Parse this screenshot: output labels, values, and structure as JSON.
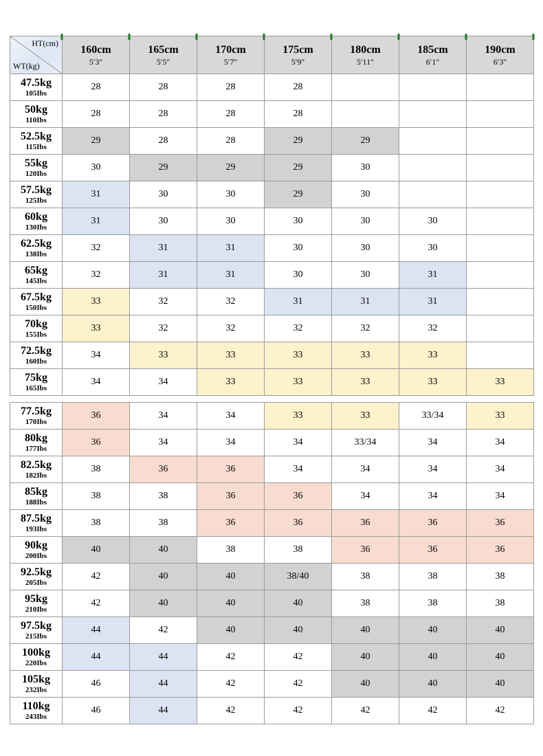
{
  "chart_data": {
    "type": "table",
    "title": "",
    "corner": {
      "top_right": "HT(cm)",
      "bottom_left": "WT(kg)"
    },
    "columns": [
      {
        "cm": "160cm",
        "ft": "5′3″"
      },
      {
        "cm": "165cm",
        "ft": "5′5″"
      },
      {
        "cm": "170cm",
        "ft": "5′7″"
      },
      {
        "cm": "175cm",
        "ft": "5′9″"
      },
      {
        "cm": "180cm",
        "ft": "5′11″"
      },
      {
        "cm": "185cm",
        "ft": "6′1″"
      },
      {
        "cm": "190cm",
        "ft": "6′3″"
      }
    ],
    "rows": [
      {
        "kg": "47.5kg",
        "lbs": "105Ibs",
        "cells": [
          {
            "v": "28",
            "c": "w"
          },
          {
            "v": "28",
            "c": "w"
          },
          {
            "v": "28",
            "c": "w"
          },
          {
            "v": "28",
            "c": "w"
          },
          {
            "v": "",
            "c": "w"
          },
          {
            "v": "",
            "c": "w"
          },
          {
            "v": "",
            "c": "w"
          }
        ]
      },
      {
        "kg": "50kg",
        "lbs": "110Ibs",
        "cells": [
          {
            "v": "28",
            "c": "w"
          },
          {
            "v": "28",
            "c": "w"
          },
          {
            "v": "28",
            "c": "w"
          },
          {
            "v": "28",
            "c": "w"
          },
          {
            "v": "",
            "c": "w"
          },
          {
            "v": "",
            "c": "w"
          },
          {
            "v": "",
            "c": "w"
          }
        ]
      },
      {
        "kg": "52.5kg",
        "lbs": "115Ibs",
        "cells": [
          {
            "v": "29",
            "c": "g"
          },
          {
            "v": "28",
            "c": "w"
          },
          {
            "v": "28",
            "c": "w"
          },
          {
            "v": "29",
            "c": "g"
          },
          {
            "v": "29",
            "c": "g"
          },
          {
            "v": "",
            "c": "w"
          },
          {
            "v": "",
            "c": "w"
          }
        ]
      },
      {
        "kg": "55kg",
        "lbs": "120Ibs",
        "cells": [
          {
            "v": "30",
            "c": "w"
          },
          {
            "v": "29",
            "c": "g"
          },
          {
            "v": "29",
            "c": "g"
          },
          {
            "v": "29",
            "c": "g"
          },
          {
            "v": "30",
            "c": "w"
          },
          {
            "v": "",
            "c": "w"
          },
          {
            "v": "",
            "c": "w"
          }
        ]
      },
      {
        "kg": "57.5kg",
        "lbs": "125Ibs",
        "cells": [
          {
            "v": "31",
            "c": "b"
          },
          {
            "v": "30",
            "c": "w"
          },
          {
            "v": "30",
            "c": "w"
          },
          {
            "v": "29",
            "c": "g"
          },
          {
            "v": "30",
            "c": "w"
          },
          {
            "v": "",
            "c": "w"
          },
          {
            "v": "",
            "c": "w"
          }
        ]
      },
      {
        "kg": "60kg",
        "lbs": "130Ibs",
        "cells": [
          {
            "v": "31",
            "c": "b"
          },
          {
            "v": "30",
            "c": "w"
          },
          {
            "v": "30",
            "c": "w"
          },
          {
            "v": "30",
            "c": "w"
          },
          {
            "v": "30",
            "c": "w"
          },
          {
            "v": "30",
            "c": "w"
          },
          {
            "v": "",
            "c": "w"
          }
        ]
      },
      {
        "kg": "62.5kg",
        "lbs": "138Ibs",
        "cells": [
          {
            "v": "32",
            "c": "w"
          },
          {
            "v": "31",
            "c": "b"
          },
          {
            "v": "31",
            "c": "b"
          },
          {
            "v": "30",
            "c": "w"
          },
          {
            "v": "30",
            "c": "w"
          },
          {
            "v": "30",
            "c": "w"
          },
          {
            "v": "",
            "c": "w"
          }
        ]
      },
      {
        "kg": "65kg",
        "lbs": "145Ibs",
        "cells": [
          {
            "v": "32",
            "c": "w"
          },
          {
            "v": "31",
            "c": "b"
          },
          {
            "v": "31",
            "c": "b"
          },
          {
            "v": "30",
            "c": "w"
          },
          {
            "v": "30",
            "c": "w"
          },
          {
            "v": "31",
            "c": "b"
          },
          {
            "v": "",
            "c": "w"
          }
        ]
      },
      {
        "kg": "67.5kg",
        "lbs": "150Ibs",
        "cells": [
          {
            "v": "33",
            "c": "y"
          },
          {
            "v": "32",
            "c": "w"
          },
          {
            "v": "32",
            "c": "w"
          },
          {
            "v": "31",
            "c": "b"
          },
          {
            "v": "31",
            "c": "b"
          },
          {
            "v": "31",
            "c": "b"
          },
          {
            "v": "",
            "c": "w"
          }
        ]
      },
      {
        "kg": "70kg",
        "lbs": "155Ibs",
        "cells": [
          {
            "v": "33",
            "c": "y"
          },
          {
            "v": "32",
            "c": "w"
          },
          {
            "v": "32",
            "c": "w"
          },
          {
            "v": "32",
            "c": "w"
          },
          {
            "v": "32",
            "c": "w"
          },
          {
            "v": "32",
            "c": "w"
          },
          {
            "v": "",
            "c": "w"
          }
        ]
      },
      {
        "kg": "72.5kg",
        "lbs": "160Ibs",
        "cells": [
          {
            "v": "34",
            "c": "w"
          },
          {
            "v": "33",
            "c": "y"
          },
          {
            "v": "33",
            "c": "y"
          },
          {
            "v": "33",
            "c": "y"
          },
          {
            "v": "33",
            "c": "y"
          },
          {
            "v": "33",
            "c": "y"
          },
          {
            "v": "",
            "c": "w"
          }
        ]
      },
      {
        "kg": "75kg",
        "lbs": "165Ibs",
        "cells": [
          {
            "v": "34",
            "c": "w"
          },
          {
            "v": "34",
            "c": "w"
          },
          {
            "v": "33",
            "c": "y"
          },
          {
            "v": "33",
            "c": "y"
          },
          {
            "v": "33",
            "c": "y"
          },
          {
            "v": "33",
            "c": "y"
          },
          {
            "v": "33",
            "c": "y"
          }
        ]
      },
      {
        "kg": "77.5kg",
        "lbs": "170Ibs",
        "cells": [
          {
            "v": "36",
            "c": "p"
          },
          {
            "v": "34",
            "c": "w"
          },
          {
            "v": "34",
            "c": "w"
          },
          {
            "v": "33",
            "c": "y"
          },
          {
            "v": "33",
            "c": "y"
          },
          {
            "v": "33/34",
            "c": "w"
          },
          {
            "v": "33",
            "c": "y"
          }
        ]
      },
      {
        "kg": "80kg",
        "lbs": "177Ibs",
        "cells": [
          {
            "v": "36",
            "c": "p"
          },
          {
            "v": "34",
            "c": "w"
          },
          {
            "v": "34",
            "c": "w"
          },
          {
            "v": "34",
            "c": "w"
          },
          {
            "v": "33/34",
            "c": "w"
          },
          {
            "v": "34",
            "c": "w"
          },
          {
            "v": "34",
            "c": "w"
          }
        ]
      },
      {
        "kg": "82.5kg",
        "lbs": "182Ibs",
        "cells": [
          {
            "v": "38",
            "c": "w"
          },
          {
            "v": "36",
            "c": "p"
          },
          {
            "v": "36",
            "c": "p"
          },
          {
            "v": "34",
            "c": "w"
          },
          {
            "v": "34",
            "c": "w"
          },
          {
            "v": "34",
            "c": "w"
          },
          {
            "v": "34",
            "c": "w"
          }
        ]
      },
      {
        "kg": "85kg",
        "lbs": "188Ibs",
        "cells": [
          {
            "v": "38",
            "c": "w"
          },
          {
            "v": "38",
            "c": "w"
          },
          {
            "v": "36",
            "c": "p"
          },
          {
            "v": "36",
            "c": "p"
          },
          {
            "v": "34",
            "c": "w"
          },
          {
            "v": "34",
            "c": "w"
          },
          {
            "v": "34",
            "c": "w"
          }
        ]
      },
      {
        "kg": "87.5kg",
        "lbs": "193Ibs",
        "cells": [
          {
            "v": "38",
            "c": "w"
          },
          {
            "v": "38",
            "c": "w"
          },
          {
            "v": "36",
            "c": "p"
          },
          {
            "v": "36",
            "c": "p"
          },
          {
            "v": "36",
            "c": "p"
          },
          {
            "v": "36",
            "c": "p"
          },
          {
            "v": "36",
            "c": "p"
          }
        ]
      },
      {
        "kg": "90kg",
        "lbs": "200Ibs",
        "cells": [
          {
            "v": "40",
            "c": "g"
          },
          {
            "v": "40",
            "c": "g"
          },
          {
            "v": "38",
            "c": "w"
          },
          {
            "v": "38",
            "c": "w"
          },
          {
            "v": "36",
            "c": "p"
          },
          {
            "v": "36",
            "c": "p"
          },
          {
            "v": "36",
            "c": "p"
          }
        ]
      },
      {
        "kg": "92.5kg",
        "lbs": "205Ibs",
        "cells": [
          {
            "v": "42",
            "c": "w"
          },
          {
            "v": "40",
            "c": "g"
          },
          {
            "v": "40",
            "c": "g"
          },
          {
            "v": "38/40",
            "c": "g"
          },
          {
            "v": "38",
            "c": "w"
          },
          {
            "v": "38",
            "c": "w"
          },
          {
            "v": "38",
            "c": "w"
          }
        ]
      },
      {
        "kg": "95kg",
        "lbs": "210Ibs",
        "cells": [
          {
            "v": "42",
            "c": "w"
          },
          {
            "v": "40",
            "c": "g"
          },
          {
            "v": "40",
            "c": "g"
          },
          {
            "v": "40",
            "c": "g"
          },
          {
            "v": "38",
            "c": "w"
          },
          {
            "v": "38",
            "c": "w"
          },
          {
            "v": "38",
            "c": "w"
          }
        ]
      },
      {
        "kg": "97.5kg",
        "lbs": "215Ibs",
        "cells": [
          {
            "v": "44",
            "c": "b"
          },
          {
            "v": "42",
            "c": "w"
          },
          {
            "v": "40",
            "c": "g"
          },
          {
            "v": "40",
            "c": "g"
          },
          {
            "v": "40",
            "c": "g"
          },
          {
            "v": "40",
            "c": "g"
          },
          {
            "v": "40",
            "c": "g"
          }
        ]
      },
      {
        "kg": "100kg",
        "lbs": "220Ibs",
        "cells": [
          {
            "v": "44",
            "c": "b"
          },
          {
            "v": "44",
            "c": "b"
          },
          {
            "v": "42",
            "c": "w"
          },
          {
            "v": "42",
            "c": "w"
          },
          {
            "v": "40",
            "c": "g"
          },
          {
            "v": "40",
            "c": "g"
          },
          {
            "v": "40",
            "c": "g"
          }
        ]
      },
      {
        "kg": "105kg",
        "lbs": "232Ibs",
        "cells": [
          {
            "v": "46",
            "c": "w"
          },
          {
            "v": "44",
            "c": "b"
          },
          {
            "v": "42",
            "c": "w"
          },
          {
            "v": "42",
            "c": "w"
          },
          {
            "v": "40",
            "c": "g"
          },
          {
            "v": "40",
            "c": "g"
          },
          {
            "v": "40",
            "c": "g"
          }
        ]
      },
      {
        "kg": "110kg",
        "lbs": "243Ibs",
        "cells": [
          {
            "v": "46",
            "c": "w"
          },
          {
            "v": "44",
            "c": "b"
          },
          {
            "v": "42",
            "c": "w"
          },
          {
            "v": "42",
            "c": "w"
          },
          {
            "v": "42",
            "c": "w"
          },
          {
            "v": "42",
            "c": "w"
          },
          {
            "v": "42",
            "c": "w"
          }
        ]
      }
    ],
    "seam_after_row": 11,
    "highlight_colors": {
      "w": "#ffffff",
      "g": "#d2d2d2",
      "b": "#dce3f2",
      "y": "#fdf2cb",
      "p": "#f9dcd0"
    },
    "header_bg": "#d8d8d8",
    "border_color": "#9a9a9a",
    "accent_green": "#217a21"
  }
}
